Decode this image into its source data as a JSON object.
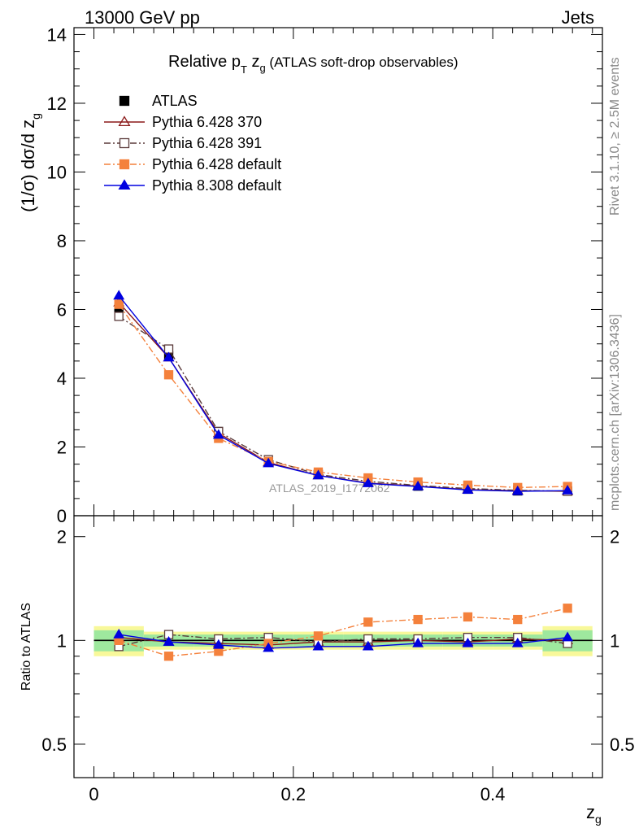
{
  "header": {
    "left": "13000 GeV pp",
    "right": "Jets"
  },
  "side_text": {
    "top": "Rivet 3.1.10, ≥ 2.5M events",
    "bottom": "mcplots.cern.ch [arXiv:1306.3436]"
  },
  "chart_data": [
    {
      "type": "line",
      "panel": "main",
      "title": "Relative p_T z_g (ATLAS soft-drop observables)",
      "title_parts": {
        "main": "Relative p",
        "sub1": "T",
        "mid": " z",
        "sub2": "g",
        "rest": " (ATLAS soft-drop observables)"
      },
      "ylabel": "(1/σ) dσ/d z_g",
      "ylabel_parts": {
        "main": "(1/σ) dσ/d z",
        "sub": "g"
      },
      "watermark": "ATLAS_2019_I1772062",
      "xlim": [
        -0.02,
        0.51
      ],
      "ylim": [
        0,
        14.2
      ],
      "yticks": [
        0,
        2,
        4,
        6,
        8,
        10,
        12,
        14
      ],
      "tick_labels": [
        "0",
        "2",
        "4",
        "6",
        "8",
        "10",
        "12",
        "14"
      ],
      "x": [
        0.025,
        0.075,
        0.125,
        0.175,
        0.225,
        0.275,
        0.325,
        0.375,
        0.425,
        0.475
      ],
      "series": [
        {
          "name": "ATLAS",
          "color": "#000000",
          "marker": "square-filled",
          "line": "none",
          "values": [
            6.05,
            4.65,
            2.45,
            1.6,
            1.2,
            0.98,
            0.86,
            0.77,
            0.72,
            0.72
          ]
        },
        {
          "name": "Pythia 6.428 370",
          "color": "#8b1a1a",
          "marker": "triangle-open",
          "line": "solid",
          "values": [
            6.2,
            4.6,
            2.4,
            1.55,
            1.17,
            0.95,
            0.86,
            0.76,
            0.73,
            0.71
          ]
        },
        {
          "name": "Pythia 6.428 391",
          "color": "#5a3a3a",
          "marker": "square-open",
          "line": "dashdot",
          "values": [
            5.8,
            4.85,
            2.45,
            1.63,
            1.2,
            1.0,
            0.88,
            0.79,
            0.74,
            0.71
          ]
        },
        {
          "name": "Pythia 6.428 default",
          "color": "#f4813c",
          "marker": "square-filled",
          "line": "dashdot",
          "values": [
            6.15,
            4.1,
            2.25,
            1.58,
            1.27,
            1.1,
            0.98,
            0.89,
            0.82,
            0.85
          ]
        },
        {
          "name": "Pythia 8.308 default",
          "color": "#0000e0",
          "marker": "triangle-filled",
          "line": "solid",
          "values": [
            6.4,
            4.6,
            2.35,
            1.52,
            1.17,
            0.94,
            0.85,
            0.75,
            0.71,
            0.73
          ]
        }
      ]
    },
    {
      "type": "line",
      "panel": "ratio",
      "ylabel": "Ratio to ATLAS",
      "xlabel": "z_g",
      "xlabel_parts": {
        "main": "z",
        "sub": "g"
      },
      "ylog": true,
      "xlim": [
        -0.02,
        0.51
      ],
      "ylim": [
        0.4,
        2.3
      ],
      "yticks": [
        0.5,
        1,
        2
      ],
      "ytick_labels": [
        "0.5",
        "1",
        "2"
      ],
      "xticks": [
        0,
        0.2,
        0.4
      ],
      "xtick_labels": [
        "0",
        "0.2",
        "0.4"
      ],
      "uncertainty_band": {
        "inner_color": "#9ee89e",
        "outer_color": "#f8f89a",
        "inner": [
          [
            0.93,
            1.07
          ],
          [
            0.96,
            1.04
          ],
          [
            0.96,
            1.04
          ],
          [
            0.96,
            1.04
          ],
          [
            0.96,
            1.04
          ],
          [
            0.96,
            1.04
          ],
          [
            0.96,
            1.04
          ],
          [
            0.96,
            1.04
          ],
          [
            0.96,
            1.04
          ],
          [
            0.93,
            1.07
          ]
        ],
        "outer": [
          [
            0.9,
            1.1
          ],
          [
            0.94,
            1.06
          ],
          [
            0.94,
            1.06
          ],
          [
            0.94,
            1.06
          ],
          [
            0.94,
            1.06
          ],
          [
            0.94,
            1.06
          ],
          [
            0.94,
            1.06
          ],
          [
            0.94,
            1.06
          ],
          [
            0.94,
            1.06
          ],
          [
            0.9,
            1.1
          ]
        ]
      },
      "x": [
        0.025,
        0.075,
        0.125,
        0.175,
        0.225,
        0.275,
        0.325,
        0.375,
        0.425,
        0.475
      ],
      "series": [
        {
          "name": "Pythia 6.428 370",
          "color": "#8b1a1a",
          "marker": "triangle-open",
          "line": "solid",
          "values": [
            1.02,
            0.99,
            0.98,
            0.97,
            0.99,
            0.99,
            1.0,
            0.99,
            1.01,
            1.0
          ]
        },
        {
          "name": "Pythia 6.428 391",
          "color": "#5a3a3a",
          "marker": "square-open",
          "line": "dashdot",
          "values": [
            0.96,
            1.04,
            1.01,
            1.02,
            0.99,
            1.01,
            1.01,
            1.02,
            1.02,
            0.98
          ]
        },
        {
          "name": "Pythia 6.428 default",
          "color": "#f4813c",
          "marker": "square-filled",
          "line": "dashdot",
          "values": [
            1.0,
            0.9,
            0.93,
            0.98,
            1.03,
            1.13,
            1.15,
            1.17,
            1.15,
            1.24
          ]
        },
        {
          "name": "Pythia 8.308 default",
          "color": "#0000e0",
          "marker": "triangle-filled",
          "line": "solid",
          "values": [
            1.04,
            0.99,
            0.97,
            0.95,
            0.96,
            0.96,
            0.98,
            0.98,
            0.98,
            1.02
          ]
        }
      ]
    }
  ]
}
